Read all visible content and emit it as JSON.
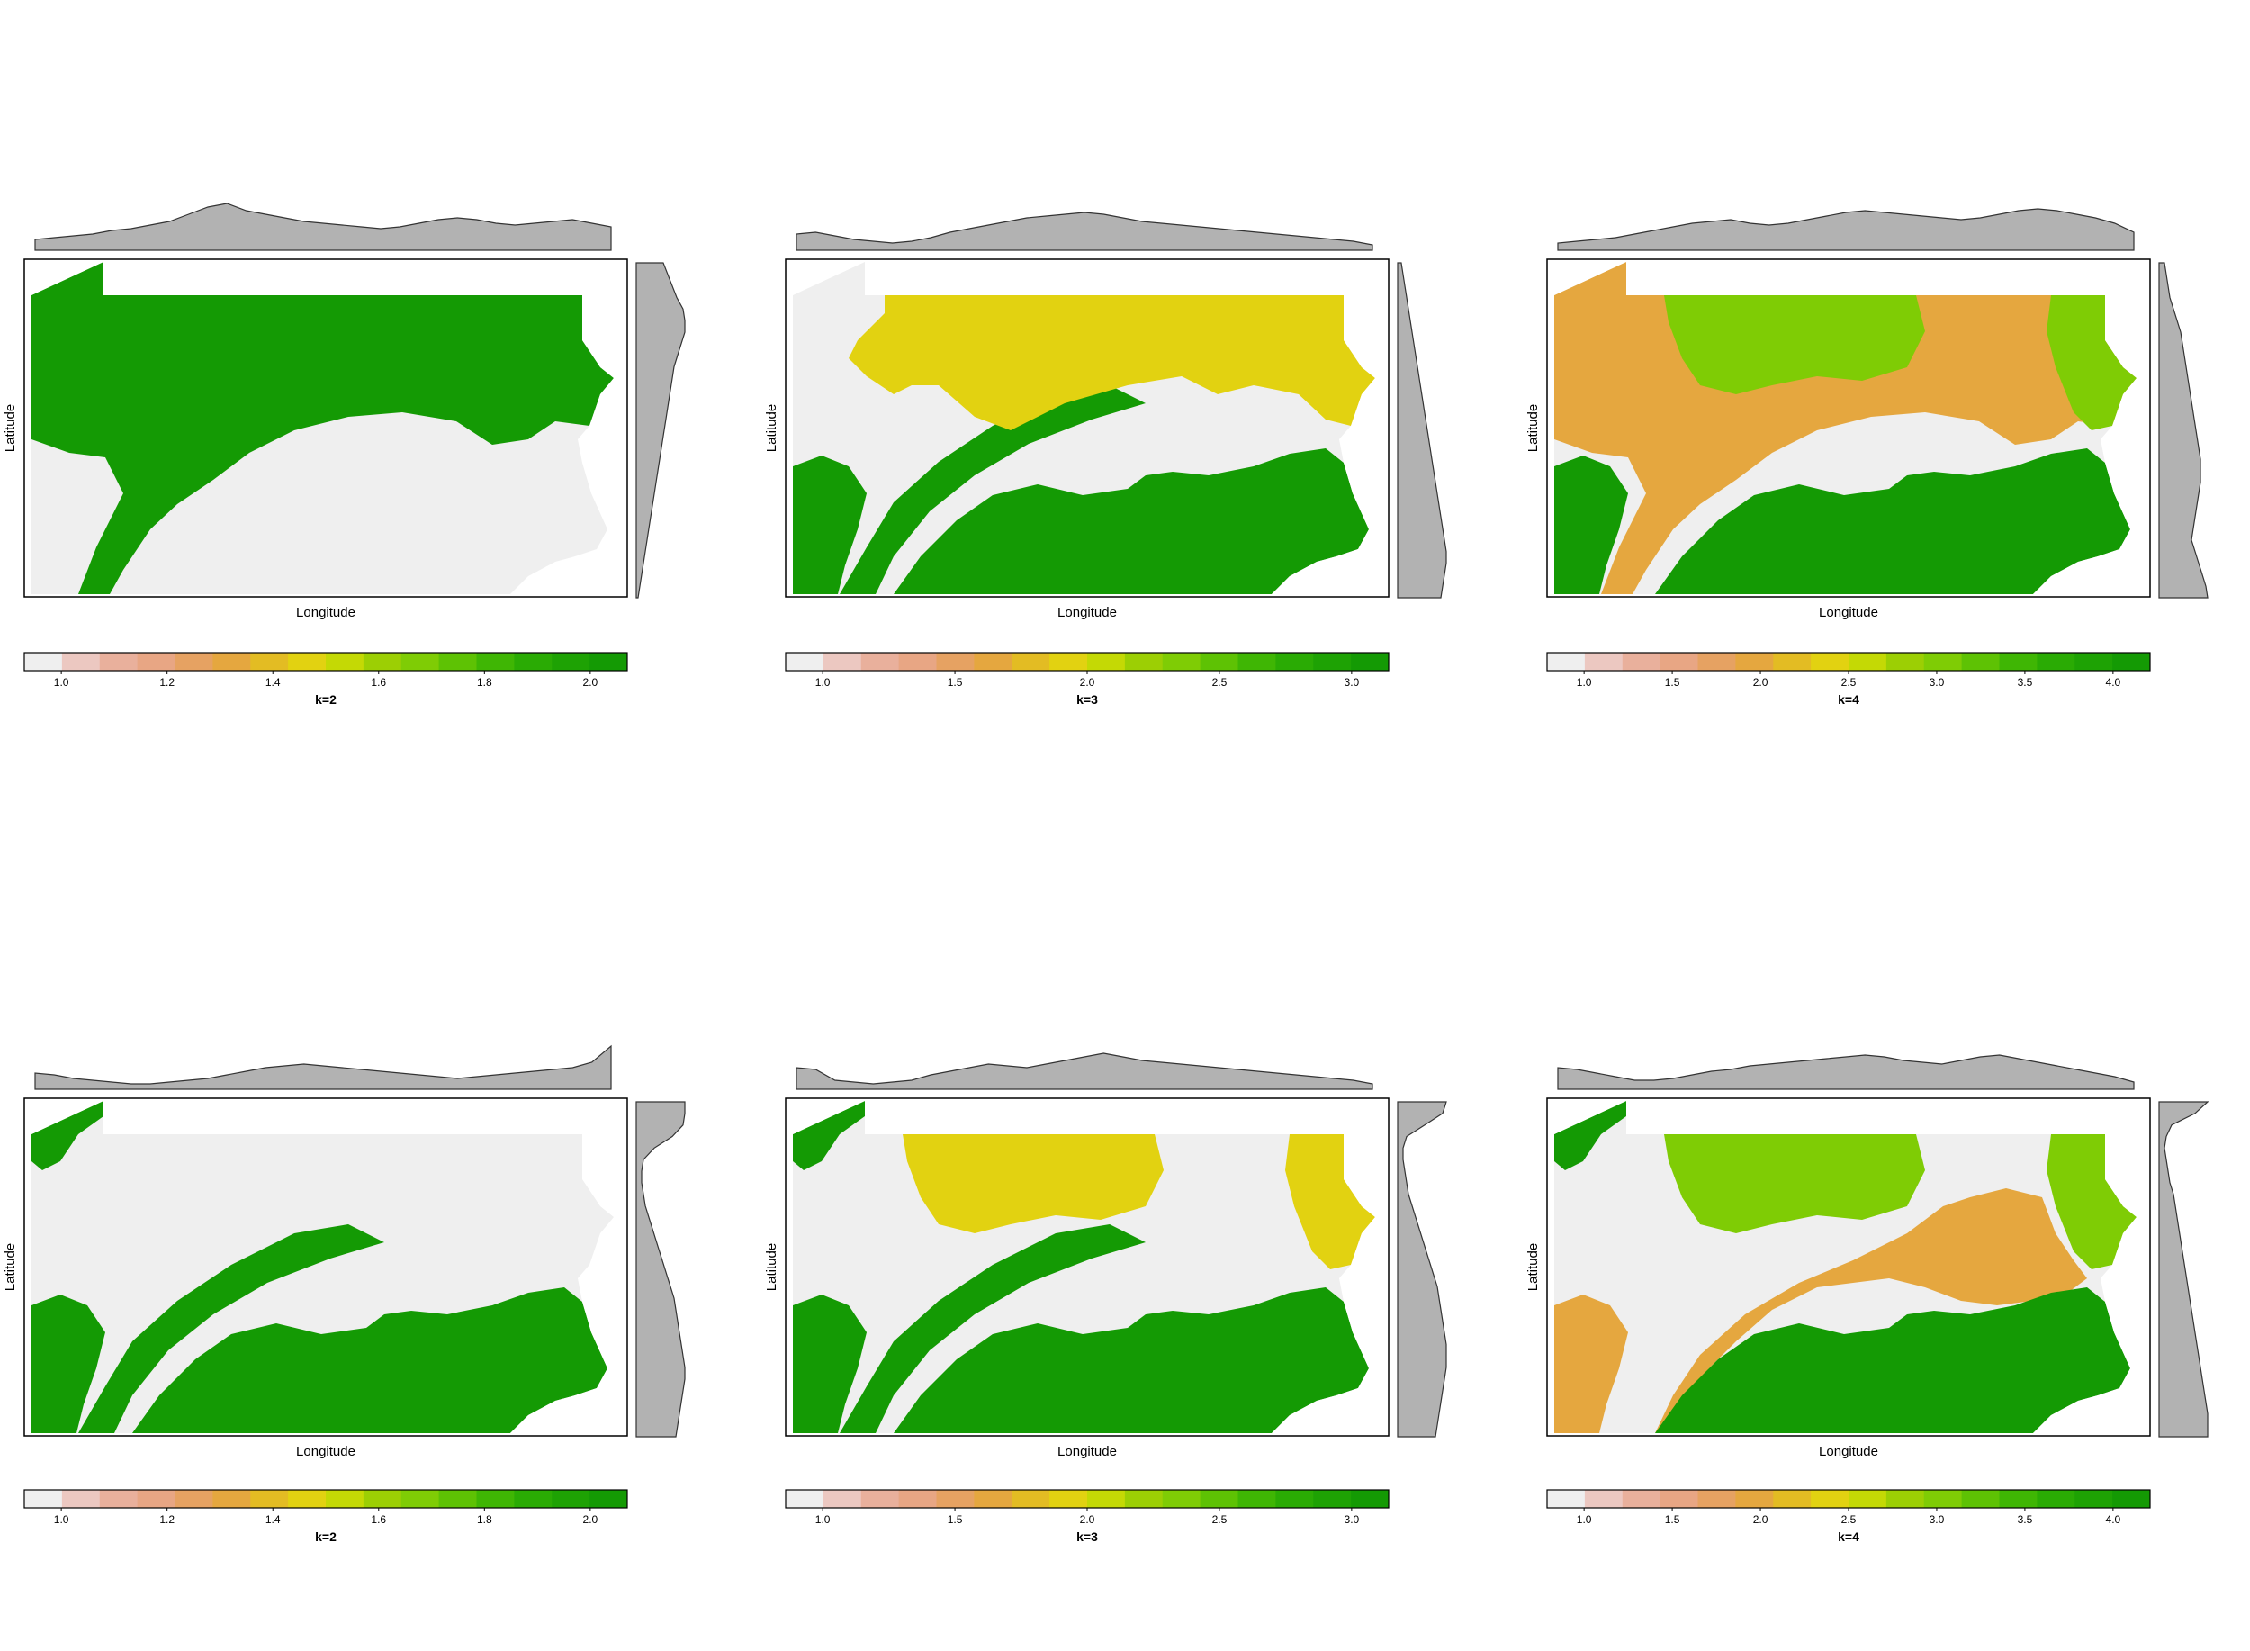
{
  "axis_labels": {
    "x": "Longitude",
    "y": "Latitude"
  },
  "colors": {
    "class_1": "#efefef",
    "orange": "#e5a73f",
    "yellow": "#e2d211",
    "light_green": "#7fcc05",
    "dark_green": "#149a04",
    "marginal_fill": "#b2b2b2",
    "legend_ramp": [
      "#efefef",
      "#ecc8c1",
      "#e9b09c",
      "#e8a684",
      "#e6a262",
      "#e5a73f",
      "#e3bc23",
      "#e2d211",
      "#c4d905",
      "#9ccf04",
      "#7fcc05",
      "#5ec204",
      "#3fb604",
      "#2aab04",
      "#1ea204",
      "#149a04"
    ]
  },
  "chart_data": [
    {
      "type": "map",
      "legend_title": "k=2",
      "legend_ticks": [
        "1.0",
        "1.2",
        "1.4",
        "1.6",
        "1.8",
        "2.0"
      ],
      "tick_values": [
        1.0,
        1.2,
        1.4,
        1.6,
        1.8,
        2.0
      ],
      "value_range": [
        0.93,
        2.07
      ]
    },
    {
      "type": "map",
      "legend_title": "k=3",
      "legend_ticks": [
        "1.0",
        "1.5",
        "2.0",
        "2.5",
        "3.0"
      ],
      "tick_values": [
        1.0,
        1.5,
        2.0,
        2.5,
        3.0
      ],
      "value_range": [
        0.86,
        3.14
      ]
    },
    {
      "type": "map",
      "legend_title": "k=4",
      "legend_ticks": [
        "1.0",
        "1.5",
        "2.0",
        "2.5",
        "3.0",
        "3.5",
        "4.0"
      ],
      "tick_values": [
        1.0,
        1.5,
        2.0,
        2.5,
        3.0,
        3.5,
        4.0
      ],
      "value_range": [
        0.79,
        4.21
      ]
    },
    {
      "type": "map",
      "legend_title": "k=2",
      "legend_ticks": [
        "1.0",
        "1.2",
        "1.4",
        "1.6",
        "1.8",
        "2.0"
      ],
      "tick_values": [
        1.0,
        1.2,
        1.4,
        1.6,
        1.8,
        2.0
      ],
      "value_range": [
        0.93,
        2.07
      ]
    },
    {
      "type": "map",
      "legend_title": "k=3",
      "legend_ticks": [
        "1.0",
        "1.5",
        "2.0",
        "2.5",
        "3.0"
      ],
      "tick_values": [
        1.0,
        1.5,
        2.0,
        2.5,
        3.0
      ],
      "value_range": [
        0.86,
        3.14
      ]
    },
    {
      "type": "map",
      "legend_title": "k=4",
      "legend_ticks": [
        "1.0",
        "1.5",
        "2.0",
        "2.5",
        "3.0",
        "3.5",
        "4.0"
      ],
      "tick_values": [
        1.0,
        1.5,
        2.0,
        2.5,
        3.0,
        3.5,
        4.0
      ],
      "value_range": [
        0.79,
        4.21
      ]
    }
  ]
}
